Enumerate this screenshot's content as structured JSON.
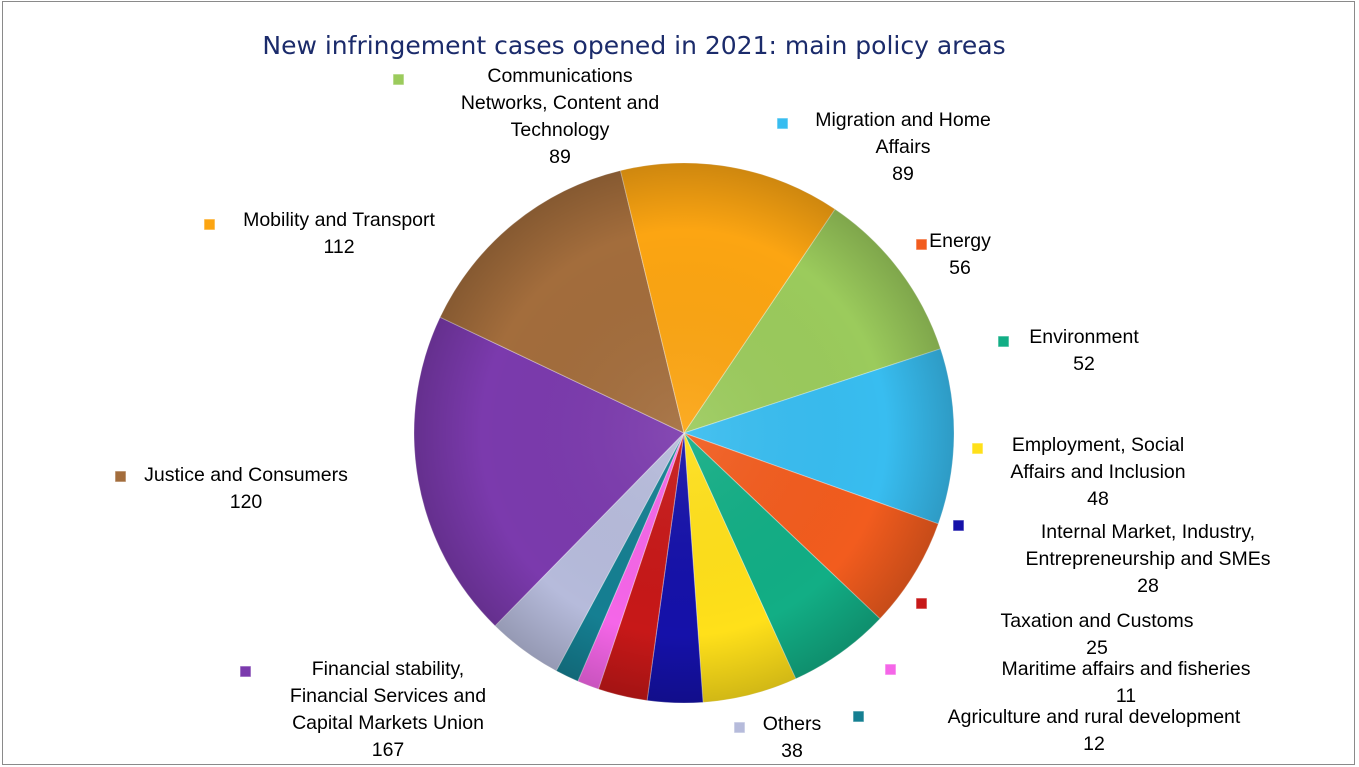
{
  "chart_data": {
    "type": "pie",
    "title": "New infringement cases opened in 2021: main policy areas",
    "legend_placement": "labels around slices",
    "slices": [
      {
        "label": "Communications Networks, Content and Technology",
        "value": 89,
        "display": "89",
        "color": "#9bcb5c"
      },
      {
        "label": "Migration and Home Affairs",
        "value": 89,
        "display": "89",
        "color": "#38bdf0"
      },
      {
        "label": "Energy",
        "value": 56,
        "display": "56",
        "color": "#f25c1e"
      },
      {
        "label": "Environment",
        "value": 52,
        "display": "52",
        "color": "#12ae85"
      },
      {
        "label": "Employment, Social Affairs and Inclusion",
        "value": 48,
        "display": "48",
        "color": "#ffe01a"
      },
      {
        "label": "Internal Market, Industry, Entrepreneurship and SMEs",
        "value": 28,
        "display": "28",
        "color": "#1511a9"
      },
      {
        "label": "Taxation and Customs",
        "value": 25,
        "display": "25",
        "color": "#c71818"
      },
      {
        "label": "Maritime affairs and fisheries",
        "value": 11,
        "display": "11",
        "color": "#f566e8"
      },
      {
        "label": "Agriculture and rural development",
        "value": 12,
        "display": "12",
        "color": "#157f92"
      },
      {
        "label": "Others",
        "value": 38,
        "display": "38",
        "color": "#b6bbdb"
      },
      {
        "label": "Financial stability, Financial Services and Capital Markets Union",
        "value": 167,
        "display": "167",
        "color": "#7b3aad"
      },
      {
        "label": "Justice and Consumers",
        "value": 120,
        "display": "120",
        "color": "#a36d3c"
      },
      {
        "label": "Mobility and Transport",
        "value": 112,
        "display": "112",
        "color": "#fca512"
      }
    ]
  }
}
